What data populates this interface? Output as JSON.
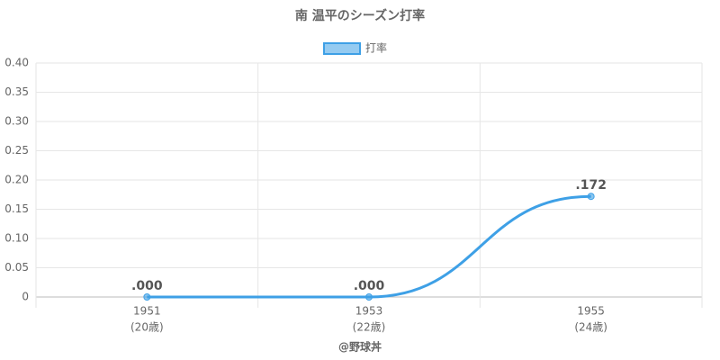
{
  "chart_data": {
    "type": "line",
    "title": "南 温平のシーズン打率",
    "categories": [
      "1951",
      "1953",
      "1955"
    ],
    "category_sublabels": [
      "(20歳)",
      "(22歳)",
      "(24歳)"
    ],
    "series": [
      {
        "name": "打率",
        "color": "#3ea0e6",
        "values": [
          0,
          0,
          0.172
        ],
        "value_labels": [
          ".000",
          ".000",
          ".172"
        ]
      }
    ],
    "ylim": [
      0,
      0.4
    ],
    "yticks": [
      0,
      0.05,
      {
        "value": 0.1,
        "label": "0.10"
      },
      0.15,
      {
        "value": 0.2,
        "label": "0.20"
      },
      0.25,
      {
        "value": 0.3,
        "label": "0.30"
      },
      0.35,
      {
        "value": 0.4,
        "label": "0.40"
      }
    ],
    "xlabel": "@野球丼",
    "grid": true
  }
}
